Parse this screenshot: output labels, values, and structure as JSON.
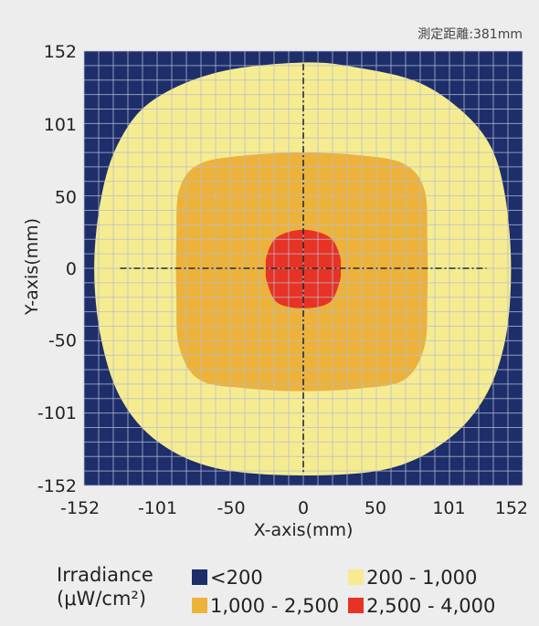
{
  "chart_data": {
    "type": "heatmap",
    "annotation": "測定距離:381mm",
    "xlabel": "X-axis(mm)",
    "ylabel": "Y-axis(mm)",
    "xlim": [
      -152,
      152
    ],
    "ylim": [
      -152,
      152
    ],
    "x_ticks": [
      "-152",
      "-101",
      "-50",
      "0",
      "50",
      "101",
      "152"
    ],
    "y_ticks": [
      "152",
      "101",
      "50",
      "0",
      "-50",
      "-101",
      "-152"
    ],
    "x_tick_values": [
      -152,
      -101,
      -50,
      0,
      50,
      101,
      152
    ],
    "y_tick_values": [
      152,
      101,
      50,
      0,
      -50,
      -101,
      -152
    ],
    "grid": true,
    "crosshair_at_origin": true,
    "legend": {
      "title_line1": "Irradiance",
      "title_line2": "(μW/cm²)",
      "placement": "bottom",
      "items": [
        {
          "label": "<200",
          "color": "#1d2e6b"
        },
        {
          "label": "200 - 1,000",
          "color": "#f5ec91"
        },
        {
          "label": "1,000 - 2,500",
          "color": "#ecb23a"
        },
        {
          "label": "2,500 - 4,000",
          "color": "#e63325"
        }
      ]
    },
    "regions": [
      {
        "label": "200 - 1,000",
        "color": "#f5ec91",
        "boundary": [
          [
            0,
            144
          ],
          [
            40,
            140
          ],
          [
            80,
            130
          ],
          [
            110,
            110
          ],
          [
            130,
            85
          ],
          [
            140,
            50
          ],
          [
            144,
            0
          ],
          [
            140,
            -50
          ],
          [
            126,
            -90
          ],
          [
            100,
            -120
          ],
          [
            60,
            -140
          ],
          [
            0,
            -145
          ],
          [
            -60,
            -140
          ],
          [
            -100,
            -122
          ],
          [
            -126,
            -92
          ],
          [
            -140,
            -50
          ],
          [
            -145,
            0
          ],
          [
            -140,
            50
          ],
          [
            -128,
            88
          ],
          [
            -105,
            117
          ],
          [
            -60,
            137
          ]
        ]
      },
      {
        "label": "1,000 - 2,500",
        "color": "#ecb23a",
        "boundary": [
          [
            0,
            81
          ],
          [
            40,
            79
          ],
          [
            70,
            73
          ],
          [
            84,
            55
          ],
          [
            86,
            20
          ],
          [
            86,
            -20
          ],
          [
            84,
            -55
          ],
          [
            70,
            -78
          ],
          [
            40,
            -84
          ],
          [
            0,
            -86
          ],
          [
            -40,
            -84
          ],
          [
            -72,
            -78
          ],
          [
            -86,
            -55
          ],
          [
            -88,
            -20
          ],
          [
            -88,
            20
          ],
          [
            -86,
            55
          ],
          [
            -72,
            73
          ],
          [
            -40,
            79
          ]
        ]
      },
      {
        "label": "2,500 - 4,000",
        "color": "#e63325",
        "boundary": [
          [
            0,
            27
          ],
          [
            18,
            22
          ],
          [
            25,
            10
          ],
          [
            26,
            0
          ],
          [
            25,
            -10
          ],
          [
            18,
            -24
          ],
          [
            0,
            -28
          ],
          [
            -18,
            -24
          ],
          [
            -25,
            -10
          ],
          [
            -26,
            0
          ],
          [
            -25,
            10
          ],
          [
            -18,
            22
          ]
        ]
      }
    ]
  },
  "colors": {
    "background": "#ededed",
    "outside": "#1d2e6b",
    "grid": "#b9bcd0",
    "crosshair": "#2a2a2a"
  }
}
